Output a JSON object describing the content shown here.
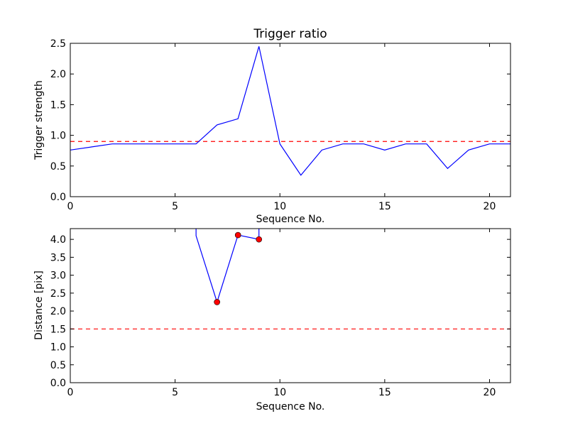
{
  "chart_data": [
    {
      "type": "line",
      "title": "Trigger ratio",
      "xlabel": "Sequence No.",
      "ylabel": "Trigger strength",
      "xlim": [
        0,
        21
      ],
      "ylim": [
        0,
        2.5
      ],
      "xticks": [
        "0",
        "5",
        "10",
        "15",
        "20"
      ],
      "xtick_values": [
        0,
        5,
        10,
        15,
        20
      ],
      "yticks": [
        "0.0",
        "0.5",
        "1.0",
        "1.5",
        "2.0",
        "2.5"
      ],
      "ytick_values": [
        0,
        0.5,
        1.0,
        1.5,
        2.0,
        2.5
      ],
      "grid": false,
      "series": [
        {
          "x": [
            0,
            1,
            2,
            3,
            4,
            5,
            6,
            7,
            8,
            9,
            10,
            11,
            12,
            13,
            14,
            15,
            16,
            17,
            18,
            19,
            20,
            21
          ],
          "values": [
            0.76,
            0.81,
            0.86,
            0.86,
            0.86,
            0.86,
            0.86,
            1.17,
            1.27,
            2.45,
            0.86,
            0.35,
            0.76,
            0.86,
            0.86,
            0.76,
            0.86,
            0.86,
            0.46,
            0.76,
            0.86,
            0.86
          ],
          "color": "#0000ff"
        }
      ],
      "threshold": {
        "value": 0.9,
        "color": "#ff0000",
        "style": "dashed"
      }
    },
    {
      "type": "line",
      "title": "",
      "xlabel": "Sequence No.",
      "ylabel": "Distance [pix]",
      "xlim": [
        0,
        21
      ],
      "ylim": [
        0,
        4.3
      ],
      "xticks": [
        "0",
        "5",
        "10",
        "15",
        "20"
      ],
      "xtick_values": [
        0,
        5,
        10,
        15,
        20
      ],
      "yticks": [
        "0.0",
        "0.5",
        "1.0",
        "1.5",
        "2.0",
        "2.5",
        "3.0",
        "3.5",
        "4.0"
      ],
      "ytick_values": [
        0,
        0.5,
        1.0,
        1.5,
        2.0,
        2.5,
        3.0,
        3.5,
        4.0
      ],
      "grid": false,
      "series": [
        {
          "x": [
            6,
            6,
            7,
            8,
            9,
            9
          ],
          "values": [
            4.3,
            4.1,
            2.25,
            4.12,
            4.0,
            4.3
          ],
          "color": "#0000ff"
        }
      ],
      "markers": {
        "x": [
          7,
          8,
          9
        ],
        "values": [
          2.25,
          4.12,
          4.0
        ],
        "color": "#ff0000"
      },
      "threshold": {
        "value": 1.5,
        "color": "#ff0000",
        "style": "dashed"
      }
    }
  ]
}
